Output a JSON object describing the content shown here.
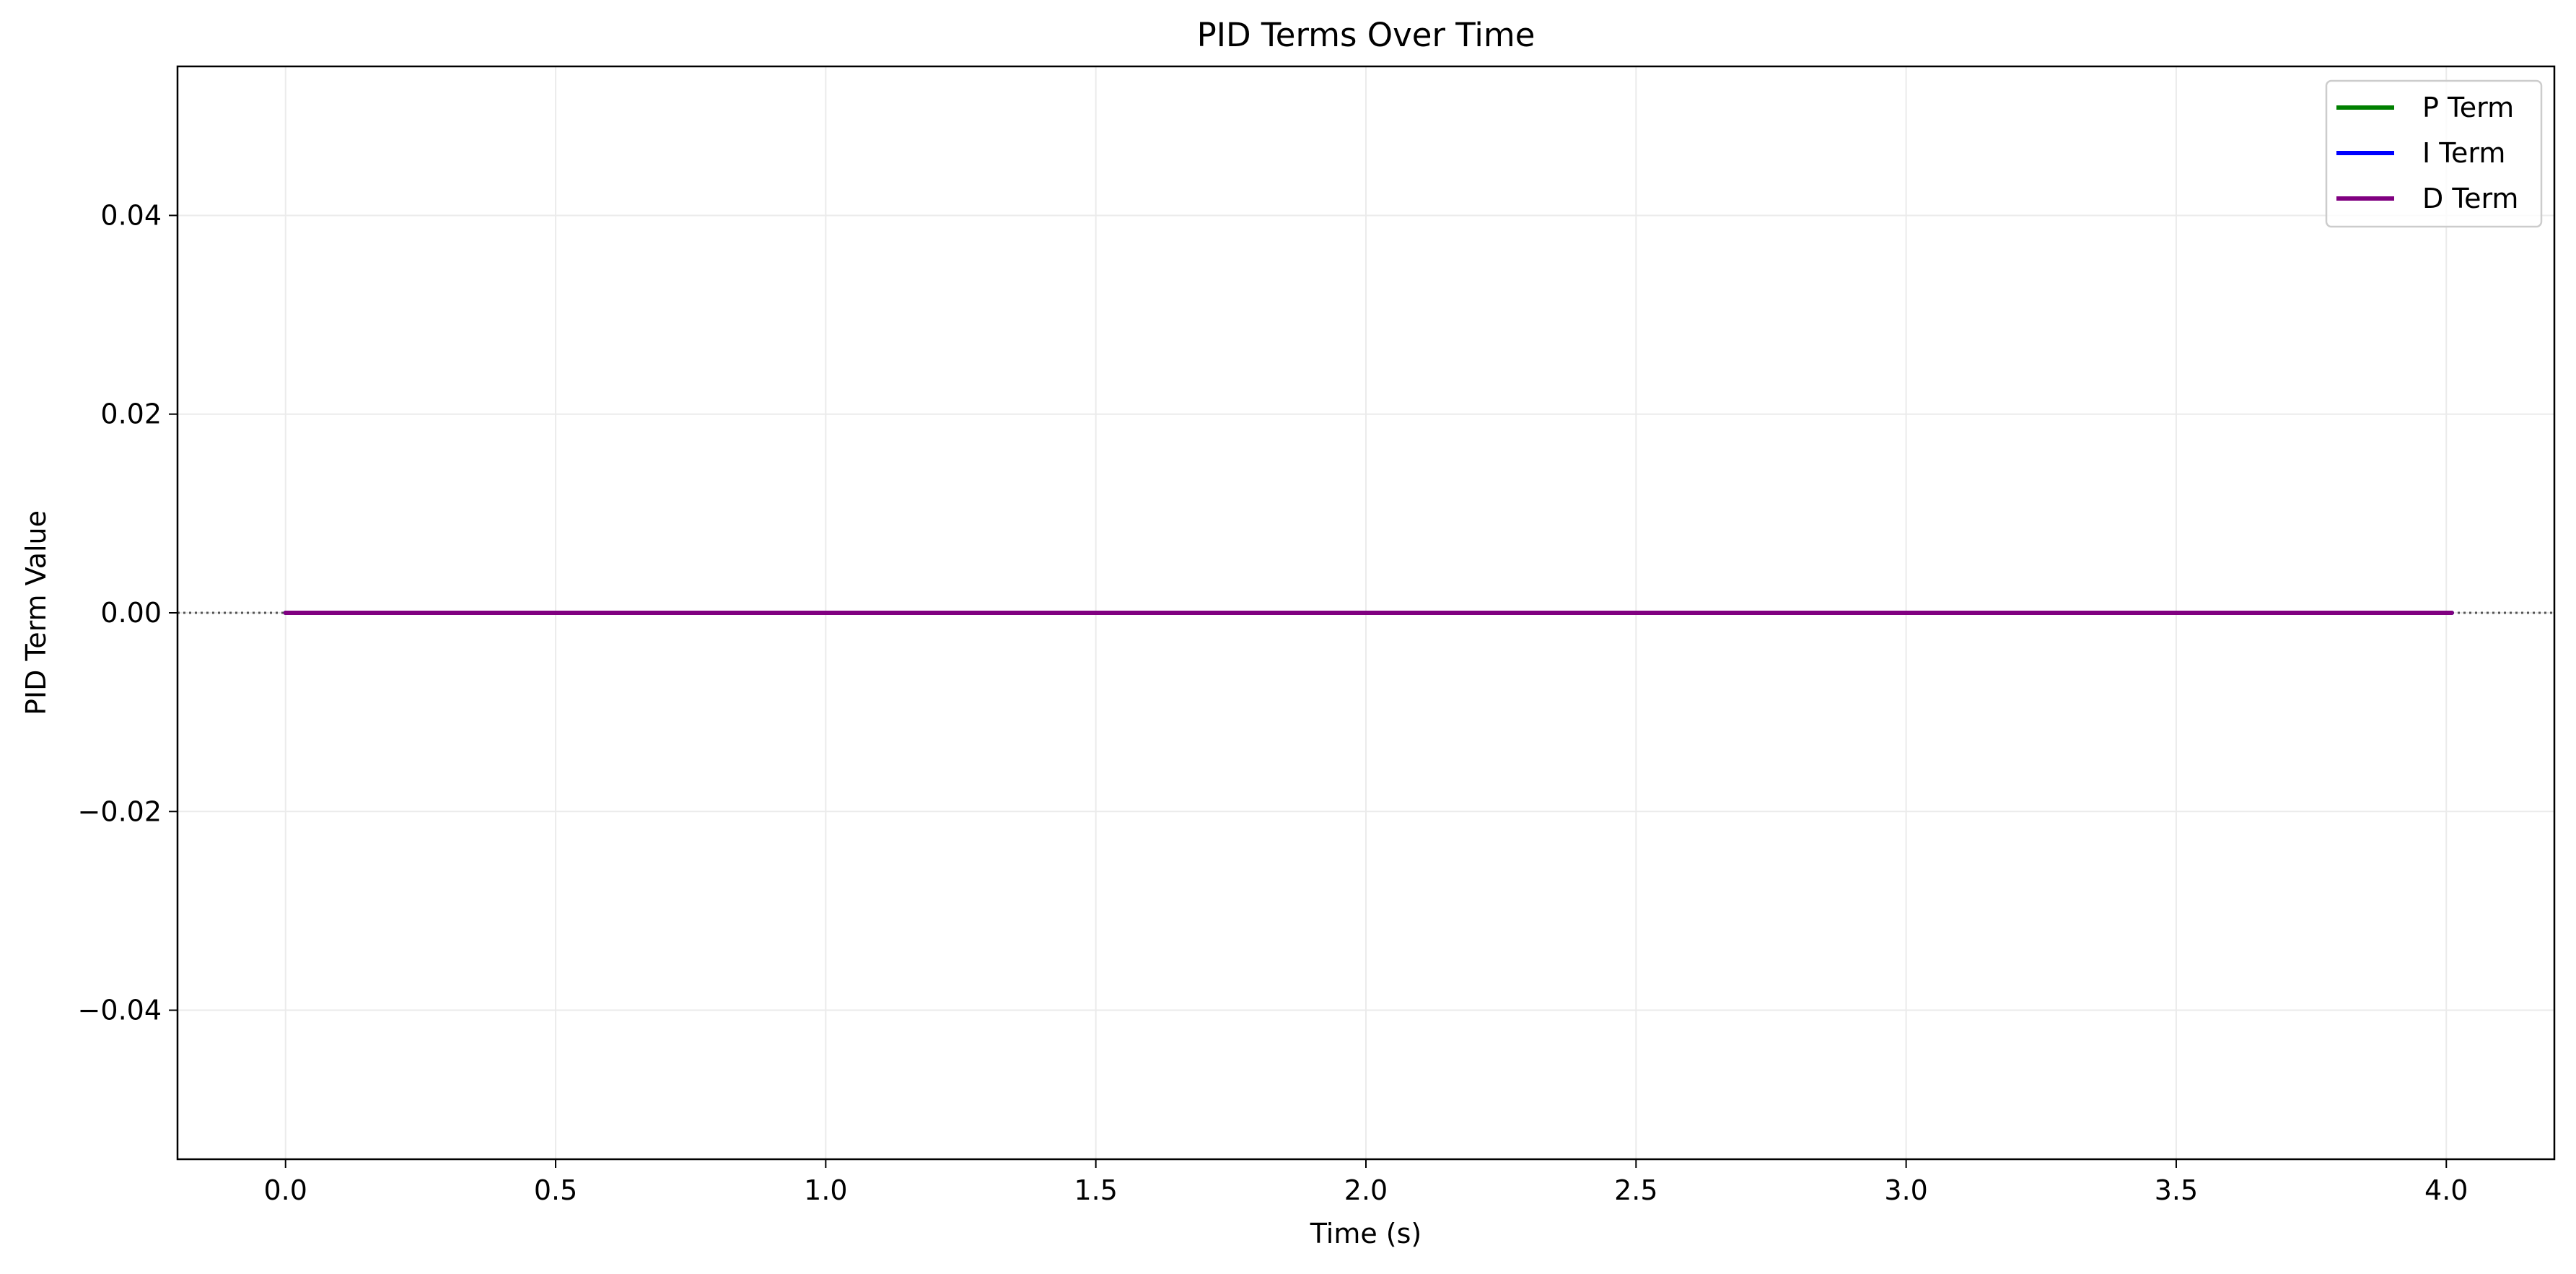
{
  "chart_data": {
    "type": "line",
    "title": "PID Terms Over Time",
    "xlabel": "Time (s)",
    "ylabel": "PID Term Value",
    "xlim": [
      -0.2,
      4.2
    ],
    "ylim": [
      -0.055,
      0.055
    ],
    "x_ticks": [
      0.0,
      0.5,
      1.0,
      1.5,
      2.0,
      2.5,
      3.0,
      3.5,
      4.0
    ],
    "x_tick_labels": [
      "0.0",
      "0.5",
      "1.0",
      "1.5",
      "2.0",
      "2.5",
      "3.0",
      "3.5",
      "4.0"
    ],
    "y_ticks": [
      0.04,
      0.02,
      0.0,
      -0.02,
      -0.04
    ],
    "y_tick_labels": [
      "0.04",
      "0.02",
      "0.00",
      "−0.02",
      "−0.04"
    ],
    "grid": true,
    "legend_position": "top-right",
    "reference_line": {
      "y": 0,
      "style": "dotted",
      "color": "#555555"
    },
    "series": [
      {
        "name": "P Term",
        "color": "#008000",
        "x": [
          0.0,
          4.01
        ],
        "y": [
          0.0,
          0.0
        ]
      },
      {
        "name": "I Term",
        "color": "#0000ff",
        "x": [
          0.0,
          4.01
        ],
        "y": [
          0.0,
          0.0
        ]
      },
      {
        "name": "D Term",
        "color": "#800080",
        "x": [
          0.0,
          4.01
        ],
        "y": [
          0.0,
          0.0
        ]
      }
    ]
  }
}
